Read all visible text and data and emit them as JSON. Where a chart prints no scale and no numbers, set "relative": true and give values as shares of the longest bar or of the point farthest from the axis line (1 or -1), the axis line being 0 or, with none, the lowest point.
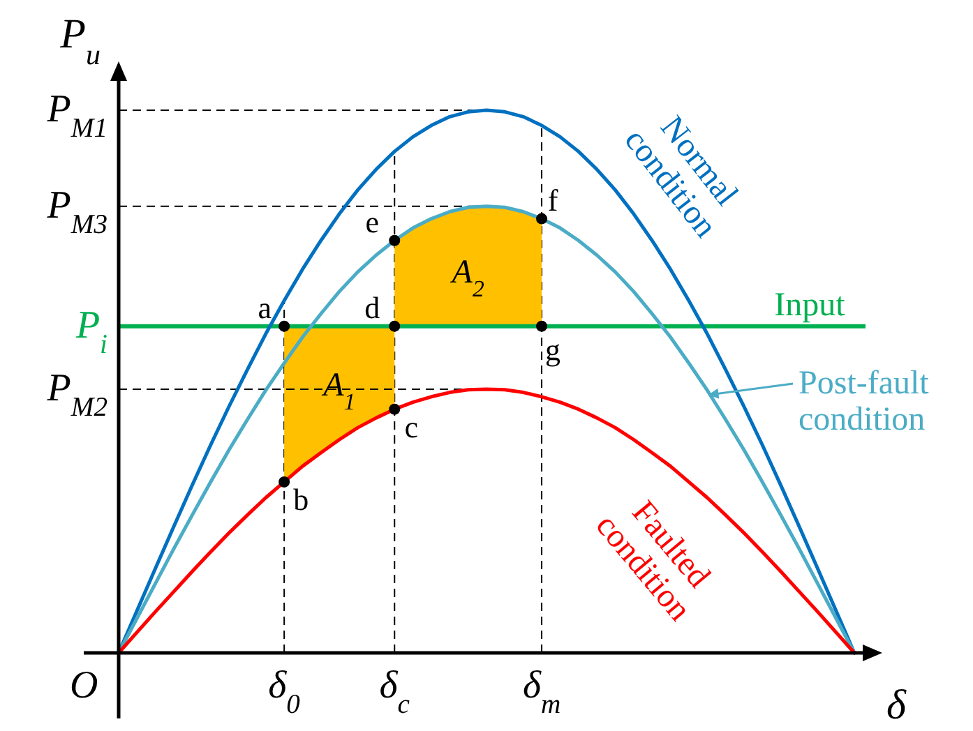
{
  "chart_data": {
    "type": "line",
    "relative": true,
    "xlabel": "δ",
    "ylabel": "P$_{u}$",
    "categories": [
      null,
      null,
      null,
      null,
      null,
      null,
      null,
      null,
      null,
      "δ$_{0}$",
      null,
      null,
      null,
      null,
      null,
      "δ$_{c}$",
      null,
      null,
      null,
      null,
      null,
      null,
      null,
      "δ$_{m}$",
      null,
      null,
      null,
      null,
      null,
      null,
      null,
      null,
      null,
      null,
      null,
      null,
      null,
      null,
      null,
      null,
      null
    ],
    "series": [
      {
        "name": "Normal condition",
        "color": "#0070c0",
        "values": [
          0,
          0.078,
          0.156,
          0.233,
          0.309,
          0.383,
          0.454,
          0.522,
          0.588,
          0.649,
          0.707,
          0.76,
          0.809,
          0.853,
          0.891,
          0.924,
          0.951,
          0.972,
          0.988,
          0.997,
          1,
          0.997,
          0.988,
          0.972,
          0.951,
          0.924,
          0.891,
          0.853,
          0.809,
          0.76,
          0.707,
          0.649,
          0.588,
          0.522,
          0.454,
          0.383,
          0.309,
          0.233,
          0.156,
          0.078,
          0
        ]
      },
      {
        "name": "Post-fault condition",
        "color": "#4bacc6",
        "values": [
          0,
          0.064,
          0.128,
          0.192,
          0.254,
          0.315,
          0.374,
          0.43,
          0.484,
          0.534,
          0.582,
          0.625,
          0.666,
          0.702,
          0.733,
          0.76,
          0.783,
          0.8,
          0.813,
          0.821,
          0.823,
          0.821,
          0.813,
          0.8,
          0.783,
          0.76,
          0.733,
          0.702,
          0.666,
          0.625,
          0.582,
          0.534,
          0.484,
          0.43,
          0.374,
          0.315,
          0.254,
          0.192,
          0.128,
          0.064,
          0
        ]
      },
      {
        "name": "Faulted condition",
        "color": "#ff0000",
        "values": [
          0,
          0.038,
          0.076,
          0.113,
          0.15,
          0.186,
          0.221,
          0.254,
          0.286,
          0.315,
          0.344,
          0.369,
          0.393,
          0.415,
          0.433,
          0.449,
          0.462,
          0.472,
          0.48,
          0.485,
          0.486,
          0.485,
          0.48,
          0.472,
          0.462,
          0.449,
          0.433,
          0.415,
          0.393,
          0.369,
          0.344,
          0.315,
          0.286,
          0.254,
          0.221,
          0.186,
          0.15,
          0.113,
          0.076,
          0.038,
          0
        ]
      }
    ],
    "ref_lines": [
      {
        "axis": "y",
        "value": 1,
        "label": "P$_{M1}$",
        "line_style": "dashed",
        "color": "#000000"
      },
      {
        "axis": "y",
        "value": 0.823,
        "label": "P$_{M3}$",
        "line_style": "dashed",
        "color": "#000000"
      },
      {
        "axis": "y",
        "value": 0.602,
        "label": "P$_{i}$",
        "line_style": "solid",
        "color": "#00b050"
      },
      {
        "axis": "y",
        "value": 0.486,
        "label": "P$_{M2}$",
        "line_style": "dashed",
        "color": "#000000"
      }
    ],
    "annotations": [
      "O",
      "A$_{1}$",
      "A$_{2}$",
      {
        "text": "Input",
        "y": 0.602
      },
      {
        "text": "a",
        "x": "δ$_{0}$",
        "y": 0.602
      },
      {
        "text": "b",
        "x": "δ$_{0}$",
        "y": 0.315
      },
      {
        "text": "c",
        "x": "δ$_{c}$",
        "y": 0.449
      },
      {
        "text": "d",
        "x": "δ$_{c}$",
        "y": 0.602
      },
      {
        "text": "e",
        "x": "δ$_{c}$",
        "y": 0.76
      },
      {
        "text": "f",
        "x": "δ$_{m}$",
        "y": 0.8
      },
      {
        "text": "g",
        "x": "δ$_{m}$",
        "y": 0.602
      }
    ]
  }
}
